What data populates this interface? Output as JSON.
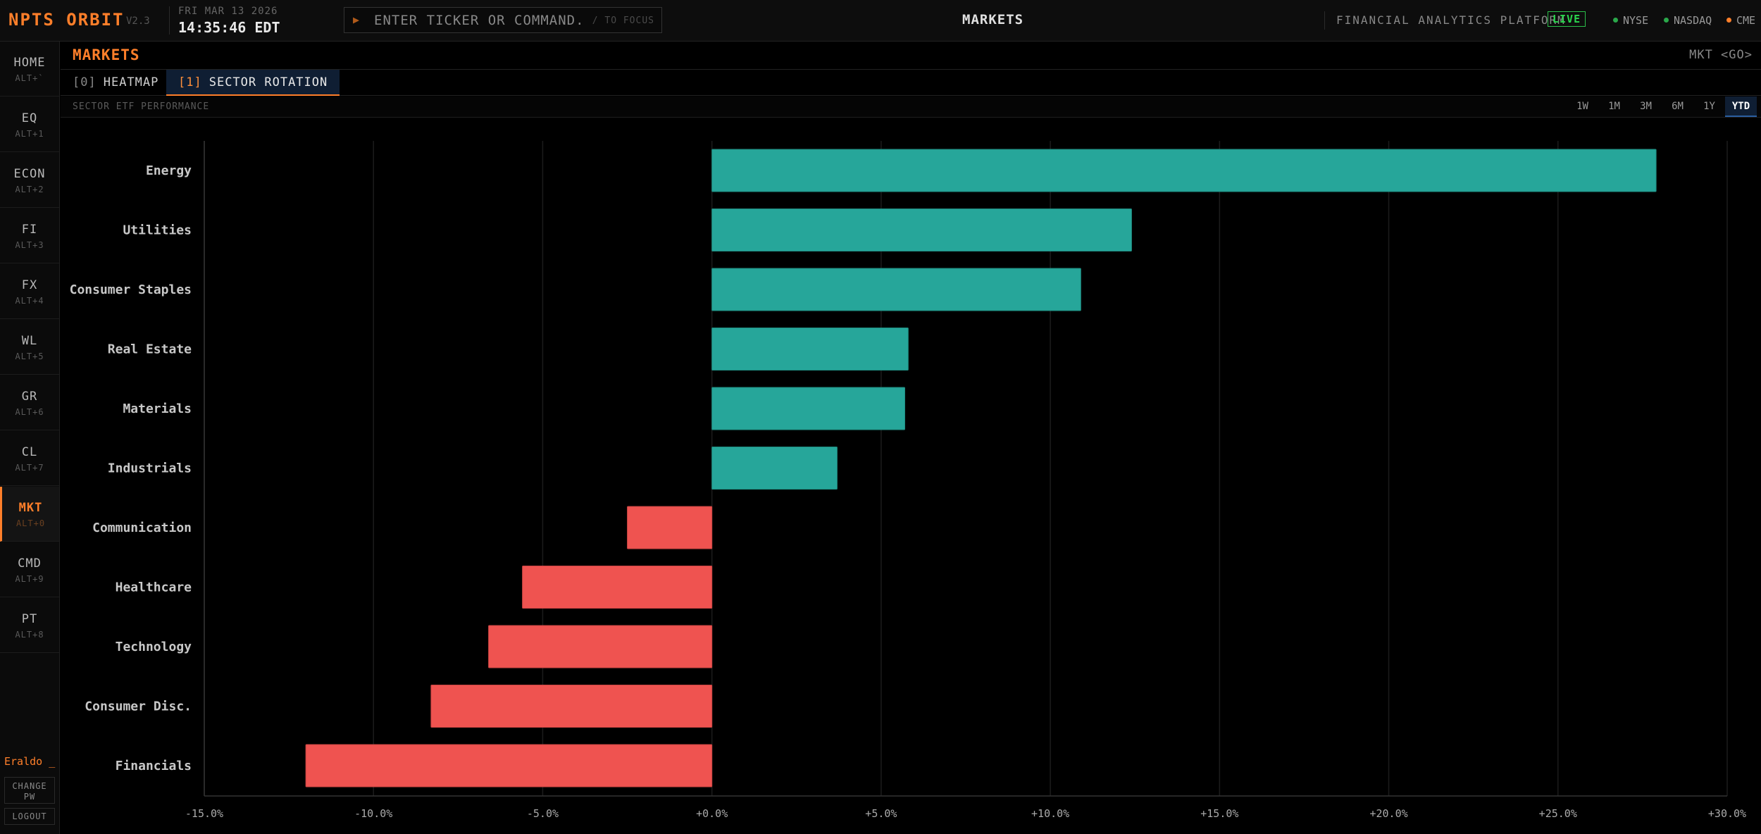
{
  "app": {
    "brand": "NPTS ORBIT",
    "version": "V2.3",
    "date": "FRI MAR 13 2026",
    "time": "14:35:46 EDT",
    "command_placeholder": "ENTER TICKER OR COMMAND...",
    "command_hint": "/ TO FOCUS",
    "page_header": "MARKETS",
    "platform_label": "FINANCIAL ANALYTICS PLATFORM",
    "live_label": "LIVE",
    "markets": [
      {
        "label": "NYSE",
        "color": "#2aa84a"
      },
      {
        "label": "NASDAQ",
        "color": "#2aa84a"
      },
      {
        "label": "CME",
        "color": "#ff7f2a"
      }
    ]
  },
  "sidebar": {
    "items": [
      {
        "label": "HOME",
        "key": "ALT+`"
      },
      {
        "label": "EQ",
        "key": "ALT+1"
      },
      {
        "label": "ECON",
        "key": "ALT+2"
      },
      {
        "label": "FI",
        "key": "ALT+3"
      },
      {
        "label": "FX",
        "key": "ALT+4"
      },
      {
        "label": "WL",
        "key": "ALT+5"
      },
      {
        "label": "GR",
        "key": "ALT+6"
      },
      {
        "label": "CL",
        "key": "ALT+7"
      },
      {
        "label": "MKT",
        "key": "ALT+0"
      },
      {
        "label": "CMD",
        "key": "ALT+9"
      },
      {
        "label": "PT",
        "key": "ALT+8"
      }
    ],
    "active_index": 8,
    "user": "Eraldo _",
    "change_pw": "CHANGE PW",
    "logout": "LOGOUT"
  },
  "main": {
    "title": "MARKETS",
    "go": "MKT <GO>",
    "tabs": [
      {
        "index": "[0]",
        "label": "HEATMAP"
      },
      {
        "index": "[1]",
        "label": "SECTOR ROTATION"
      }
    ],
    "active_tab": 1,
    "subtitle": "SECTOR ETF PERFORMANCE",
    "ranges": [
      "1W",
      "1M",
      "3M",
      "6M",
      "1Y",
      "YTD"
    ],
    "active_range": "YTD"
  },
  "colors": {
    "accent": "#ff7f2a",
    "positive": "#26a69a",
    "negative": "#ef5350"
  },
  "chart_data": {
    "type": "bar",
    "orientation": "horizontal",
    "categories": [
      "Energy",
      "Utilities",
      "Consumer Staples",
      "Real Estate",
      "Materials",
      "Industrials",
      "Communication",
      "Healthcare",
      "Technology",
      "Consumer Disc.",
      "Financials"
    ],
    "values": [
      27.9,
      12.4,
      10.9,
      5.8,
      5.7,
      3.7,
      -2.5,
      -5.6,
      -6.6,
      -8.3,
      -12.0
    ],
    "xlim": [
      -15,
      30
    ],
    "ticks": [
      "-15.0%",
      "-10.0%",
      "-5.0%",
      "+0.0%",
      "+5.0%",
      "+10.0%",
      "+15.0%",
      "+20.0%",
      "+25.0%",
      "+30.0%"
    ],
    "grid": true
  }
}
